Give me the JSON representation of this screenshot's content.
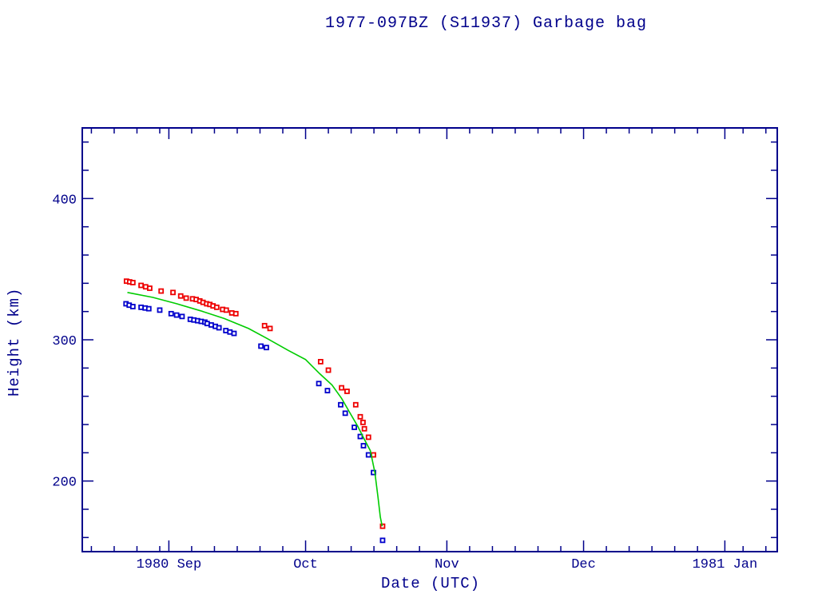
{
  "page": {
    "background": "#ffffff"
  },
  "chart_data": {
    "type": "scatter",
    "title": "1977-097BZ (S11937) Garbage bag",
    "xlabel": "Date (UTC)",
    "ylabel": "Height (km)",
    "grid": false,
    "legend": "none",
    "colors": {
      "axis": "#00008b",
      "apogee": "#ee0000",
      "perigee": "#0000cc",
      "fit_line": "#00cc00"
    },
    "x_axis": {
      "unit": "days relative to 1980-09-01",
      "min": -19,
      "max": 133.5,
      "major_ticks": [
        {
          "day": 0,
          "label": "1980 Sep"
        },
        {
          "day": 30,
          "label": "Oct"
        },
        {
          "day": 61,
          "label": "Nov"
        },
        {
          "day": 91,
          "label": "Dec"
        },
        {
          "day": 122,
          "label": "1981 Jan"
        }
      ],
      "minor_tick_days": [
        -17,
        -12,
        -7,
        -2,
        5,
        10,
        15,
        20,
        25,
        35,
        40,
        45,
        50,
        55,
        66,
        71,
        76,
        81,
        86,
        96,
        101,
        106,
        111,
        116,
        126,
        131
      ]
    },
    "y_axis": {
      "min": 150,
      "max": 450,
      "major_ticks": [
        200,
        300,
        400
      ],
      "minor_ticks": [
        160,
        180,
        220,
        240,
        260,
        280,
        320,
        340,
        360,
        380,
        420,
        440
      ]
    },
    "series": [
      {
        "name": "apogee height",
        "type": "scatter",
        "marker": "open-square",
        "color": "#ee0000",
        "points": [
          [
            -9.3,
            341.5
          ],
          [
            -8.6,
            341
          ],
          [
            -7.9,
            340.5
          ],
          [
            -6.1,
            338.5
          ],
          [
            -5.1,
            337.5
          ],
          [
            -4.2,
            336.5
          ],
          [
            -1.7,
            334.5
          ],
          [
            0.9,
            333.5
          ],
          [
            2.6,
            331
          ],
          [
            3.8,
            329.5
          ],
          [
            5.2,
            329
          ],
          [
            6.0,
            328.5
          ],
          [
            6.8,
            327.5
          ],
          [
            7.5,
            326.5
          ],
          [
            8.3,
            325.5
          ],
          [
            9.0,
            325
          ],
          [
            9.7,
            324
          ],
          [
            10.5,
            323
          ],
          [
            11.8,
            321.5
          ],
          [
            12.6,
            321
          ],
          [
            13.8,
            319
          ],
          [
            14.7,
            318.5
          ],
          [
            21.0,
            310
          ],
          [
            22.2,
            308
          ],
          [
            33.3,
            284.5
          ],
          [
            35.0,
            278.5
          ],
          [
            37.9,
            266
          ],
          [
            39.1,
            263.5
          ],
          [
            41.0,
            254
          ],
          [
            42.0,
            245.5
          ],
          [
            42.6,
            241.5
          ],
          [
            42.9,
            237
          ],
          [
            43.8,
            231
          ],
          [
            44.9,
            218.5
          ],
          [
            46.9,
            168
          ]
        ]
      },
      {
        "name": "perigee height",
        "type": "scatter",
        "marker": "open-square",
        "color": "#0000cc",
        "points": [
          [
            -9.4,
            325.5
          ],
          [
            -8.7,
            324.5
          ],
          [
            -7.9,
            323.5
          ],
          [
            -6.1,
            323
          ],
          [
            -5.2,
            322.5
          ],
          [
            -4.4,
            322
          ],
          [
            -2.0,
            321
          ],
          [
            0.5,
            318.5
          ],
          [
            1.7,
            317.5
          ],
          [
            2.9,
            316.5
          ],
          [
            4.7,
            314.5
          ],
          [
            5.5,
            314
          ],
          [
            6.3,
            313.5
          ],
          [
            7.1,
            313
          ],
          [
            7.9,
            312.5
          ],
          [
            8.4,
            311.5
          ],
          [
            9.3,
            310.5
          ],
          [
            10.2,
            309.5
          ],
          [
            11.0,
            308.5
          ],
          [
            12.5,
            306.5
          ],
          [
            13.4,
            305.5
          ],
          [
            14.3,
            304.5
          ],
          [
            20.2,
            295.5
          ],
          [
            21.4,
            294.5
          ],
          [
            32.9,
            269
          ],
          [
            34.8,
            264
          ],
          [
            37.7,
            254
          ],
          [
            38.7,
            248
          ],
          [
            40.7,
            238
          ],
          [
            42.0,
            231.5
          ],
          [
            42.7,
            225
          ],
          [
            43.8,
            218.5
          ],
          [
            44.9,
            206
          ],
          [
            46.9,
            158
          ]
        ]
      },
      {
        "name": "decay fit",
        "type": "line",
        "color": "#00cc00",
        "points": [
          [
            -9.1,
            333.5
          ],
          [
            -3.5,
            330
          ],
          [
            1.7,
            325.5
          ],
          [
            7.0,
            320.5
          ],
          [
            12.2,
            315
          ],
          [
            17.5,
            308
          ],
          [
            21.5,
            301
          ],
          [
            26.2,
            292.5
          ],
          [
            30.0,
            286
          ],
          [
            33.1,
            276
          ],
          [
            35.8,
            268
          ],
          [
            37.9,
            258.5
          ],
          [
            39.6,
            249
          ],
          [
            41.4,
            239
          ],
          [
            42.9,
            229.5
          ],
          [
            44.2,
            221.5
          ],
          [
            45.2,
            206
          ],
          [
            45.9,
            188.5
          ],
          [
            46.4,
            174.5
          ],
          [
            46.8,
            168
          ]
        ]
      }
    ]
  }
}
